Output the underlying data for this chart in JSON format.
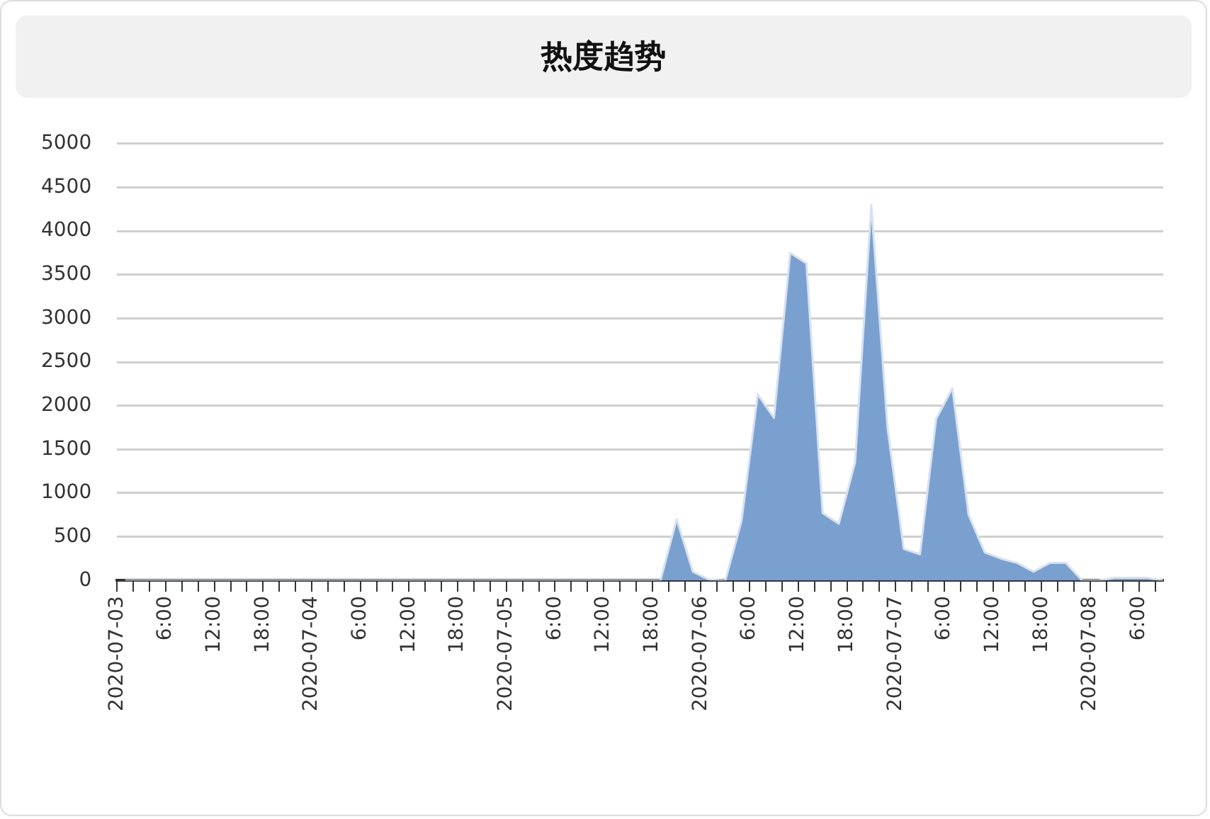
{
  "chart_data": {
    "type": "area",
    "title": "热度趋势",
    "x": [
      "2020-07-03T01:00",
      "2020-07-05T19:00",
      "2020-07-05T21:00",
      "2020-07-05T23:00",
      "2020-07-06T01:00",
      "2020-07-06T03:00",
      "2020-07-06T05:00",
      "2020-07-06T07:00",
      "2020-07-06T09:00",
      "2020-07-06T11:00",
      "2020-07-06T13:00",
      "2020-07-06T15:00",
      "2020-07-06T17:00",
      "2020-07-06T19:00",
      "2020-07-06T21:00",
      "2020-07-06T23:00",
      "2020-07-07T01:00",
      "2020-07-07T03:00",
      "2020-07-07T05:00",
      "2020-07-07T07:00",
      "2020-07-07T09:00",
      "2020-07-07T11:00",
      "2020-07-07T13:00",
      "2020-07-07T15:00",
      "2020-07-07T17:00",
      "2020-07-07T19:00",
      "2020-07-07T21:00",
      "2020-07-07T23:00",
      "2020-07-08T01:00",
      "2020-07-08T03:00",
      "2020-07-08T05:00",
      "2020-07-08T07:00",
      "2020-07-08T09:00"
    ],
    "series": [
      {
        "color": "#7aa0cf",
        "values": [
          0,
          0,
          700,
          100,
          10,
          0,
          680,
          2130,
          1860,
          3750,
          3630,
          770,
          650,
          1350,
          4300,
          1750,
          360,
          300,
          1850,
          2200,
          750,
          320,
          250,
          200,
          100,
          200,
          200,
          0,
          0,
          30,
          30,
          30,
          0
        ]
      }
    ],
    "xlim": [
      "2020-07-03T00:00",
      "2020-07-08T09:00"
    ],
    "xticks": [
      {
        "value": "2020-07-03T00:00",
        "label": "2020-07-03"
      },
      {
        "value": "2020-07-03T02:00",
        "label": null
      },
      {
        "value": "2020-07-03T04:00",
        "label": null
      },
      {
        "value": "2020-07-03T06:00",
        "label": "6:00"
      },
      {
        "value": "2020-07-03T08:00",
        "label": null
      },
      {
        "value": "2020-07-03T10:00",
        "label": null
      },
      {
        "value": "2020-07-03T12:00",
        "label": "12:00"
      },
      {
        "value": "2020-07-03T14:00",
        "label": null
      },
      {
        "value": "2020-07-03T16:00",
        "label": null
      },
      {
        "value": "2020-07-03T18:00",
        "label": "18:00"
      },
      {
        "value": "2020-07-03T20:00",
        "label": null
      },
      {
        "value": "2020-07-03T22:00",
        "label": null
      },
      {
        "value": "2020-07-04T00:00",
        "label": "2020-07-04"
      },
      {
        "value": "2020-07-04T02:00",
        "label": null
      },
      {
        "value": "2020-07-04T04:00",
        "label": null
      },
      {
        "value": "2020-07-04T06:00",
        "label": "6:00"
      },
      {
        "value": "2020-07-04T08:00",
        "label": null
      },
      {
        "value": "2020-07-04T10:00",
        "label": null
      },
      {
        "value": "2020-07-04T12:00",
        "label": "12:00"
      },
      {
        "value": "2020-07-04T14:00",
        "label": null
      },
      {
        "value": "2020-07-04T16:00",
        "label": null
      },
      {
        "value": "2020-07-04T18:00",
        "label": "18:00"
      },
      {
        "value": "2020-07-04T20:00",
        "label": null
      },
      {
        "value": "2020-07-04T22:00",
        "label": null
      },
      {
        "value": "2020-07-05T00:00",
        "label": "2020-07-05"
      },
      {
        "value": "2020-07-05T02:00",
        "label": null
      },
      {
        "value": "2020-07-05T04:00",
        "label": null
      },
      {
        "value": "2020-07-05T06:00",
        "label": "6:00"
      },
      {
        "value": "2020-07-05T08:00",
        "label": null
      },
      {
        "value": "2020-07-05T10:00",
        "label": null
      },
      {
        "value": "2020-07-05T12:00",
        "label": "12:00"
      },
      {
        "value": "2020-07-05T14:00",
        "label": null
      },
      {
        "value": "2020-07-05T16:00",
        "label": null
      },
      {
        "value": "2020-07-05T18:00",
        "label": "18:00"
      },
      {
        "value": "2020-07-05T20:00",
        "label": null
      },
      {
        "value": "2020-07-05T22:00",
        "label": null
      },
      {
        "value": "2020-07-06T00:00",
        "label": "2020-07-06"
      },
      {
        "value": "2020-07-06T02:00",
        "label": null
      },
      {
        "value": "2020-07-06T04:00",
        "label": null
      },
      {
        "value": "2020-07-06T06:00",
        "label": "6:00"
      },
      {
        "value": "2020-07-06T08:00",
        "label": null
      },
      {
        "value": "2020-07-06T10:00",
        "label": null
      },
      {
        "value": "2020-07-06T12:00",
        "label": "12:00"
      },
      {
        "value": "2020-07-06T14:00",
        "label": null
      },
      {
        "value": "2020-07-06T16:00",
        "label": null
      },
      {
        "value": "2020-07-06T18:00",
        "label": "18:00"
      },
      {
        "value": "2020-07-06T20:00",
        "label": null
      },
      {
        "value": "2020-07-06T22:00",
        "label": null
      },
      {
        "value": "2020-07-07T00:00",
        "label": "2020-07-07"
      },
      {
        "value": "2020-07-07T02:00",
        "label": null
      },
      {
        "value": "2020-07-07T04:00",
        "label": null
      },
      {
        "value": "2020-07-07T06:00",
        "label": "6:00"
      },
      {
        "value": "2020-07-07T08:00",
        "label": null
      },
      {
        "value": "2020-07-07T10:00",
        "label": null
      },
      {
        "value": "2020-07-07T12:00",
        "label": "12:00"
      },
      {
        "value": "2020-07-07T14:00",
        "label": null
      },
      {
        "value": "2020-07-07T16:00",
        "label": null
      },
      {
        "value": "2020-07-07T18:00",
        "label": "18:00"
      },
      {
        "value": "2020-07-07T20:00",
        "label": null
      },
      {
        "value": "2020-07-07T22:00",
        "label": null
      },
      {
        "value": "2020-07-08T00:00",
        "label": "2020-07-08"
      },
      {
        "value": "2020-07-08T02:00",
        "label": null
      },
      {
        "value": "2020-07-08T04:00",
        "label": null
      },
      {
        "value": "2020-07-08T06:00",
        "label": "6:00"
      },
      {
        "value": "2020-07-08T08:00",
        "label": null
      }
    ],
    "ylim": [
      0,
      5000
    ],
    "yticks": [
      0,
      500,
      1000,
      1500,
      2000,
      2500,
      3000,
      3500,
      4000,
      4500,
      5000
    ],
    "grid": "y",
    "legend": false,
    "marker": "none"
  }
}
